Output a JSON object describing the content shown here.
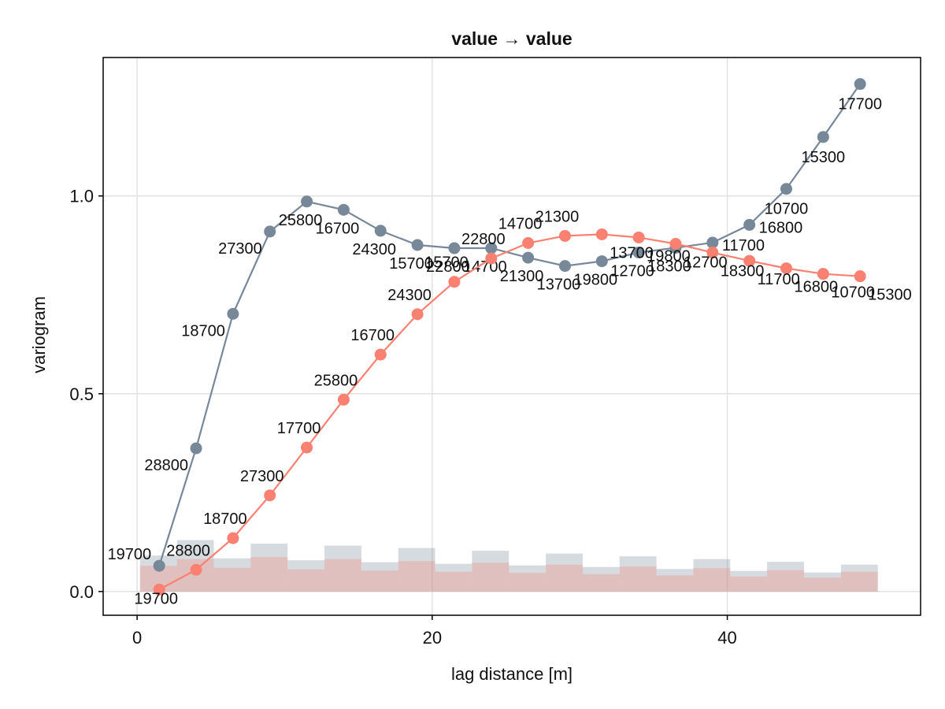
{
  "chart_data": {
    "type": "line",
    "title": "value → value",
    "xlabel": "lag distance [m]",
    "ylabel": "variogram",
    "xlim": [
      -2.3,
      53.1
    ],
    "ylim": [
      -0.06,
      1.35
    ],
    "xticks": [
      0,
      20,
      40
    ],
    "yticks": [
      0.0,
      0.5,
      1.0
    ],
    "xtick_labels": [
      "0",
      "20",
      "40"
    ],
    "ytick_labels": [
      "0.0",
      "0.5",
      "1.0"
    ],
    "grid": true,
    "legend": "none",
    "colors": {
      "series_gray": "#778899",
      "series_salmon": "#fa8072",
      "hist_gray": "#778899",
      "hist_salmon": "#fa8072",
      "grid": "#e2e2e2",
      "axes": "#000000"
    },
    "series": [
      {
        "color_key": "series_gray",
        "x": [
          1.5,
          4.0,
          6.5,
          9.0,
          11.5,
          14.0,
          16.5,
          19.0,
          21.5,
          24.0,
          26.5,
          29.0,
          31.5,
          34.0,
          36.5,
          39.0,
          41.5,
          44.0,
          46.5,
          49.0
        ],
        "y": [
          0.065,
          0.362,
          0.702,
          0.91,
          0.986,
          0.965,
          0.912,
          0.876,
          0.868,
          0.868,
          0.844,
          0.823,
          0.835,
          0.857,
          0.869,
          0.882,
          0.927,
          1.018,
          1.149,
          1.283
        ],
        "labels": [
          "19700",
          "28800",
          "18700",
          "27300",
          "25800",
          "16700",
          "24300",
          "15700",
          "22800",
          "14700",
          "21300",
          "13700",
          "19800",
          "12700",
          "18300",
          "11700",
          "16800",
          "10700",
          "15300",
          "17700"
        ]
      },
      {
        "color_key": "series_salmon",
        "x": [
          1.5,
          4.0,
          6.5,
          9.0,
          11.5,
          14.0,
          16.5,
          19.0,
          21.5,
          24.0,
          26.5,
          29.0,
          31.5,
          34.0,
          36.5,
          39.0,
          41.5,
          44.0,
          46.5,
          49.0
        ],
        "y": [
          0.005,
          0.055,
          0.135,
          0.243,
          0.364,
          0.485,
          0.599,
          0.701,
          0.783,
          0.842,
          0.881,
          0.899,
          0.903,
          0.895,
          0.879,
          0.857,
          0.836,
          0.817,
          0.803,
          0.797
        ],
        "labels": [
          "19700",
          "28800",
          "18700",
          "27300",
          "17700",
          "25800",
          "16700",
          "24300",
          "15700",
          "22800",
          "14700",
          "21300",
          "13700",
          "19800",
          "12700",
          "18300",
          "11700",
          "16800",
          "10700",
          "15300"
        ]
      }
    ],
    "histogram": {
      "bin_edges": [
        0.2,
        2.7,
        5.2,
        7.7,
        10.2,
        12.7,
        15.2,
        17.7,
        20.2,
        22.7,
        25.2,
        27.7,
        30.2,
        32.7,
        35.2,
        37.7,
        40.2,
        42.7,
        45.2,
        47.7,
        50.2
      ],
      "gray_heights": [
        0.091,
        0.13,
        0.084,
        0.121,
        0.079,
        0.116,
        0.074,
        0.11,
        0.07,
        0.103,
        0.066,
        0.096,
        0.062,
        0.089,
        0.057,
        0.082,
        0.052,
        0.075,
        0.048,
        0.068
      ],
      "salmon_heights": [
        0.065,
        0.082,
        0.06,
        0.087,
        0.056,
        0.082,
        0.053,
        0.077,
        0.05,
        0.073,
        0.047,
        0.068,
        0.044,
        0.063,
        0.041,
        0.059,
        0.038,
        0.054,
        0.035,
        0.05
      ]
    }
  }
}
